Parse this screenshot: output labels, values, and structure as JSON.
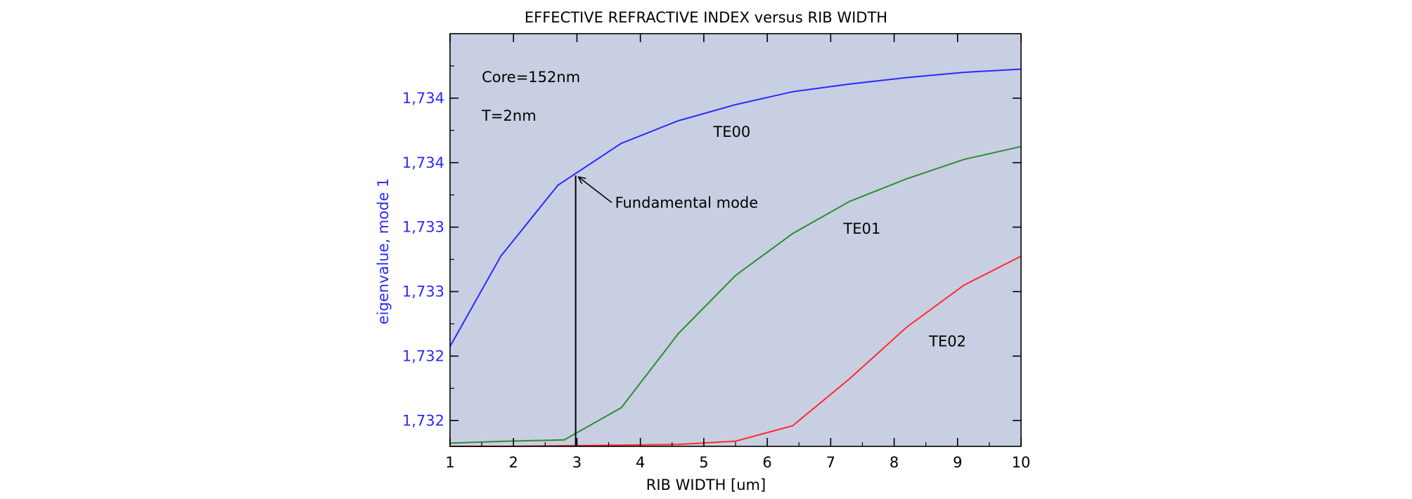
{
  "chart_data": {
    "type": "line",
    "title": "EFFECTIVE REFRACTIVE INDEX versus RIB WIDTH",
    "xlabel": "RIB WIDTH [um]",
    "ylabel": "eigenvalue, mode 1",
    "xlim": [
      1,
      10
    ],
    "ylim": [
      0,
      6.4
    ],
    "x_ticks": [
      1,
      2,
      3,
      4,
      5,
      6,
      7,
      8,
      9,
      10
    ],
    "y_ticks": [
      {
        "value": 0.4,
        "label": "1,732"
      },
      {
        "value": 1.4,
        "label": "1,732"
      },
      {
        "value": 2.4,
        "label": "1,733"
      },
      {
        "value": 3.4,
        "label": "1,733"
      },
      {
        "value": 4.4,
        "label": "1,734"
      },
      {
        "value": 5.4,
        "label": "1,734"
      }
    ],
    "grid": false,
    "background_color": "#c8cfe3",
    "series": [
      {
        "name": "TE00",
        "color": "#2a2aff",
        "x": [
          1,
          1.8,
          2.7,
          3.7,
          4.6,
          5.5,
          6.4,
          7.3,
          8.2,
          9.1,
          10
        ],
        "y": [
          1.55,
          2.95,
          4.05,
          4.7,
          5.05,
          5.3,
          5.5,
          5.62,
          5.72,
          5.8,
          5.85
        ]
      },
      {
        "name": "TE01",
        "color": "#2e8b2e",
        "x": [
          1,
          1.9,
          2.8,
          3.7,
          4.6,
          5.5,
          6.4,
          7.3,
          8.2,
          9.1,
          10
        ],
        "y": [
          0.05,
          0.08,
          0.1,
          0.6,
          1.75,
          2.65,
          3.3,
          3.8,
          4.15,
          4.45,
          4.65
        ]
      },
      {
        "name": "TE02",
        "color": "#ff2a2a",
        "x": [
          1,
          1.9,
          2.8,
          3.7,
          4.6,
          5.5,
          6.4,
          7.3,
          8.2,
          9.1,
          10
        ],
        "y": [
          0,
          0,
          0.01,
          0.02,
          0.03,
          0.08,
          0.32,
          1.05,
          1.85,
          2.5,
          2.95
        ]
      }
    ],
    "annotations": [
      {
        "text": "Core=152nm",
        "x": 1.5,
        "y": 5.65
      },
      {
        "text": "T=2nm",
        "x": 1.5,
        "y": 5.05
      },
      {
        "text": "TE00",
        "x": 5.15,
        "y": 4.8
      },
      {
        "text": "TE01",
        "x": 7.2,
        "y": 3.3
      },
      {
        "text": "TE02",
        "x": 8.55,
        "y": 1.55
      },
      {
        "text": "Fundamental mode",
        "x": 3.6,
        "y": 3.7
      }
    ],
    "marker_line": {
      "x": 2.98,
      "y_from": 0,
      "y_to": 4.2,
      "label": "Fundamental mode"
    }
  }
}
